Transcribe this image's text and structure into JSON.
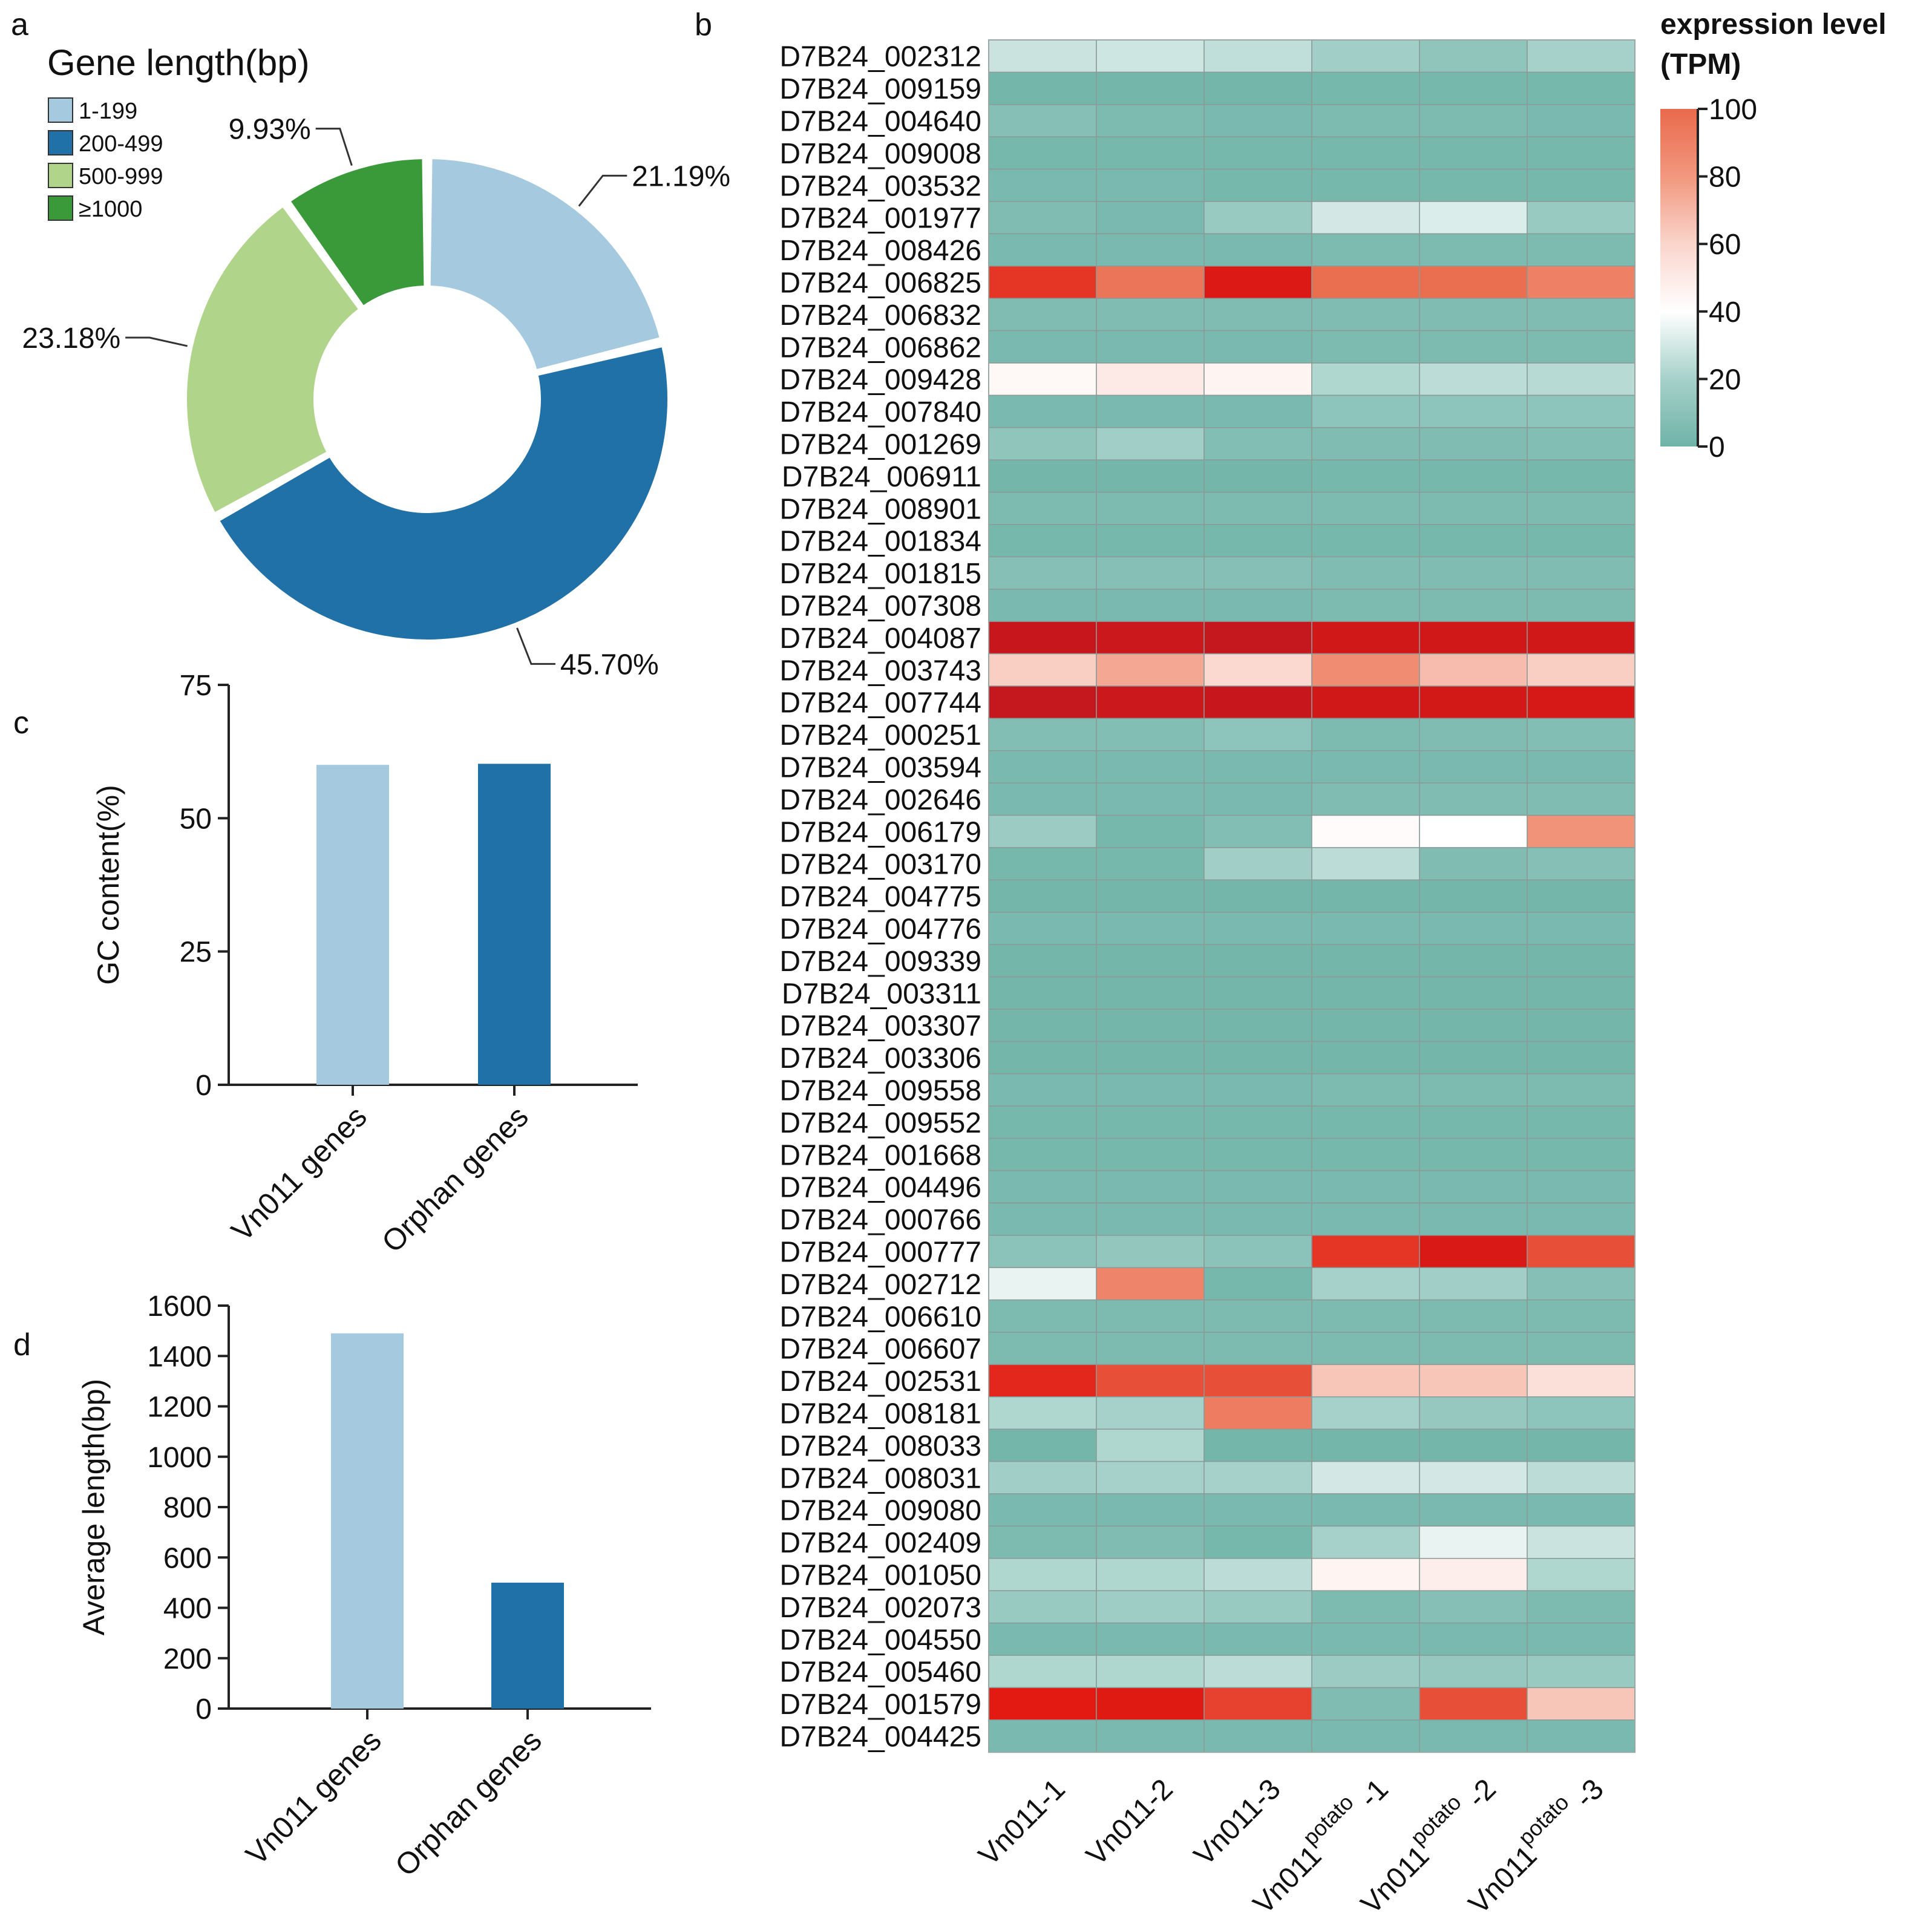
{
  "chart_data": [
    {
      "panel": "a",
      "type": "pie",
      "variant": "donut",
      "title": "Gene length(bp)",
      "legend_position": "top-left",
      "slices": [
        {
          "label": "1-199",
          "value": 21.19,
          "value_label": "21.19%",
          "color": "#a5cadf"
        },
        {
          "label": "200-499",
          "value": 45.7,
          "value_label": "45.70%",
          "color": "#2171a9"
        },
        {
          "label": "500-999",
          "value": 23.18,
          "value_label": "23.18%",
          "color": "#b0d58a"
        },
        {
          "label": "≥1000",
          "value": 9.93,
          "value_label": "9.93%",
          "color": "#3a9a3a"
        }
      ]
    },
    {
      "panel": "b",
      "type": "heatmap",
      "colorbar": {
        "title_line1": "expression level",
        "title_line2": "(TPM)",
        "range": [
          0,
          100
        ],
        "ticks": [
          0,
          20,
          40,
          60,
          80,
          100
        ],
        "tick_labels": [
          "0",
          "20",
          "40",
          "60",
          "80",
          "100"
        ],
        "stops": [
          {
            "value": 0,
            "color": "#6fb3a8"
          },
          {
            "value": 20,
            "color": "#a6d1ca"
          },
          {
            "value": 40,
            "color": "#ffffff"
          },
          {
            "value": 60,
            "color": "#fad5cc"
          },
          {
            "value": 80,
            "color": "#f2977e"
          },
          {
            "value": 100,
            "color": "#e96a4c"
          },
          {
            "value": 130,
            "color": "#e21a12"
          },
          {
            "value": 180,
            "color": "#c4171e"
          }
        ]
      },
      "columns": [
        {
          "prefix": "Vn011-1",
          "sup": "",
          "suffix": ""
        },
        {
          "prefix": "Vn011-2",
          "sup": "",
          "suffix": ""
        },
        {
          "prefix": "Vn011-3",
          "sup": "",
          "suffix": ""
        },
        {
          "prefix": "Vn011",
          "sup": "potato",
          "suffix": " -1"
        },
        {
          "prefix": "Vn011",
          "sup": "potato",
          "suffix": " -2"
        },
        {
          "prefix": "Vn011",
          "sup": "potato",
          "suffix": " -3"
        }
      ],
      "rows": [
        "D7B24_002312",
        "D7B24_009159",
        "D7B24_004640",
        "D7B24_009008",
        "D7B24_003532",
        "D7B24_001977",
        "D7B24_008426",
        "D7B24_006825",
        "D7B24_006832",
        "D7B24_006862",
        "D7B24_009428",
        "D7B24_007840",
        "D7B24_001269",
        "D7B24_006911",
        "D7B24_008901",
        "D7B24_001834",
        "D7B24_001815",
        "D7B24_007308",
        "D7B24_004087",
        "D7B24_003743",
        "D7B24_007744",
        "D7B24_000251",
        "D7B24_003594",
        "D7B24_002646",
        "D7B24_006179",
        "D7B24_003170",
        "D7B24_004775",
        "D7B24_004776",
        "D7B24_009339",
        "D7B24_003311",
        "D7B24_003307",
        "D7B24_003306",
        "D7B24_009558",
        "D7B24_009552",
        "D7B24_001668",
        "D7B24_004496",
        "D7B24_000766",
        "D7B24_000777",
        "D7B24_002712",
        "D7B24_006610",
        "D7B24_006607",
        "D7B24_002531",
        "D7B24_008181",
        "D7B24_008033",
        "D7B24_008031",
        "D7B24_009080",
        "D7B24_002409",
        "D7B24_001050",
        "D7B24_002073",
        "D7B24_004550",
        "D7B24_005460",
        "D7B24_001579",
        "D7B24_004425"
      ],
      "values": [
        [
          28,
          29,
          26,
          18,
          12,
          20
        ],
        [
          2,
          2,
          2,
          3,
          3,
          3
        ],
        [
          8,
          5,
          4,
          5,
          5,
          4
        ],
        [
          3,
          3,
          3,
          3,
          3,
          3
        ],
        [
          4,
          4,
          3,
          3,
          3,
          3
        ],
        [
          6,
          4,
          15,
          30,
          32,
          15
        ],
        [
          4,
          4,
          4,
          5,
          5,
          5
        ],
        [
          120,
          95,
          140,
          98,
          98,
          90
        ],
        [
          6,
          6,
          6,
          6,
          6,
          6
        ],
        [
          4,
          4,
          4,
          5,
          5,
          5
        ],
        [
          43,
          50,
          45,
          22,
          25,
          24
        ],
        [
          4,
          4,
          4,
          11,
          11,
          11
        ],
        [
          12,
          18,
          7,
          6,
          6,
          7
        ],
        [
          2,
          2,
          2,
          3,
          3,
          3
        ],
        [
          5,
          5,
          5,
          5,
          5,
          5
        ],
        [
          3,
          3,
          3,
          3,
          3,
          3
        ],
        [
          8,
          8,
          8,
          6,
          6,
          6
        ],
        [
          4,
          4,
          4,
          5,
          5,
          5
        ],
        [
          175,
          170,
          180,
          160,
          160,
          160
        ],
        [
          62,
          75,
          58,
          85,
          68,
          62
        ],
        [
          180,
          170,
          175,
          160,
          155,
          150
        ],
        [
          7,
          7,
          11,
          5,
          6,
          7
        ],
        [
          4,
          4,
          4,
          4,
          4,
          4
        ],
        [
          4,
          4,
          4,
          6,
          6,
          6
        ],
        [
          16,
          3,
          7,
          42,
          40,
          82
        ],
        [
          3,
          3,
          18,
          25,
          6,
          8
        ],
        [
          2,
          2,
          2,
          2,
          2,
          2
        ],
        [
          4,
          4,
          4,
          4,
          4,
          4
        ],
        [
          2,
          2,
          2,
          2,
          2,
          2
        ],
        [
          2,
          2,
          2,
          2,
          2,
          2
        ],
        [
          2,
          2,
          2,
          2,
          2,
          2
        ],
        [
          2,
          2,
          2,
          2,
          2,
          2
        ],
        [
          4,
          4,
          4,
          5,
          5,
          5
        ],
        [
          3,
          3,
          3,
          3,
          3,
          3
        ],
        [
          3,
          3,
          3,
          3,
          3,
          3
        ],
        [
          4,
          4,
          4,
          4,
          4,
          4
        ],
        [
          4,
          4,
          4,
          4,
          4,
          4
        ],
        [
          10,
          13,
          10,
          120,
          145,
          110
        ],
        [
          35,
          88,
          3,
          20,
          18,
          8
        ],
        [
          5,
          5,
          5,
          5,
          5,
          5
        ],
        [
          5,
          5,
          5,
          5,
          5,
          5
        ],
        [
          125,
          110,
          110,
          65,
          65,
          55
        ],
        [
          22,
          20,
          92,
          20,
          14,
          11
        ],
        [
          2,
          22,
          2,
          2,
          2,
          2
        ],
        [
          18,
          20,
          20,
          30,
          30,
          25
        ],
        [
          4,
          4,
          4,
          4,
          4,
          4
        ],
        [
          5,
          6,
          3,
          20,
          35,
          28
        ],
        [
          22,
          22,
          25,
          45,
          48,
          22
        ],
        [
          15,
          17,
          15,
          5,
          8,
          5
        ],
        [
          4,
          4,
          4,
          4,
          4,
          4
        ],
        [
          22,
          22,
          25,
          16,
          14,
          15
        ],
        [
          130,
          135,
          115,
          6,
          110,
          65
        ],
        [
          4,
          4,
          4,
          4,
          4,
          4
        ]
      ]
    },
    {
      "panel": "c",
      "type": "bar",
      "title": "",
      "xlabel": "",
      "ylabel": "GC content(%)",
      "ylim": [
        0,
        75
      ],
      "yticks": [
        0,
        25,
        50,
        75
      ],
      "categories": [
        "Vn011 genes",
        "Orphan genes"
      ],
      "values": [
        60,
        60.2
      ],
      "colors": [
        "#a5cadf",
        "#2171a9"
      ]
    },
    {
      "panel": "d",
      "type": "bar",
      "title": "",
      "xlabel": "",
      "ylabel": "Average length(bp)",
      "ylim": [
        0,
        1600
      ],
      "yticks": [
        0,
        200,
        400,
        600,
        800,
        1000,
        1200,
        1400,
        1600
      ],
      "categories": [
        "Vn011 genes",
        "Orphan genes"
      ],
      "values": [
        1490,
        500
      ],
      "colors": [
        "#a5cadf",
        "#2171a9"
      ]
    }
  ],
  "panel_labels": {
    "a": "a",
    "b": "b",
    "c": "c",
    "d": "d"
  }
}
